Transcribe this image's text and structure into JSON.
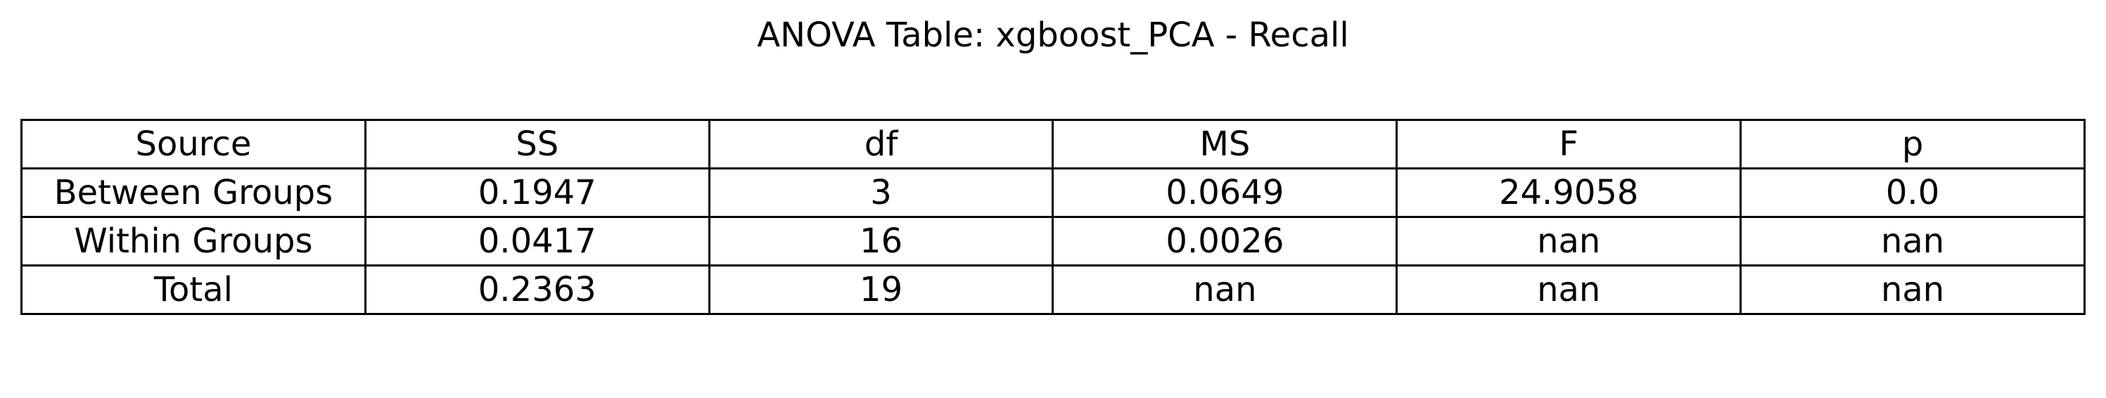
{
  "chart_data": {
    "type": "table",
    "title": "ANOVA Table: xgboost_PCA - Recall",
    "columns": [
      "Source",
      "SS",
      "df",
      "MS",
      "F",
      "p"
    ],
    "rows": [
      [
        "Between Groups",
        "0.1947",
        "3",
        "0.0649",
        "24.9058",
        "0.0"
      ],
      [
        "Within Groups",
        "0.0417",
        "16",
        "0.0026",
        "nan",
        "nan"
      ],
      [
        "Total",
        "0.2363",
        "19",
        "nan",
        "nan",
        "nan"
      ]
    ]
  }
}
